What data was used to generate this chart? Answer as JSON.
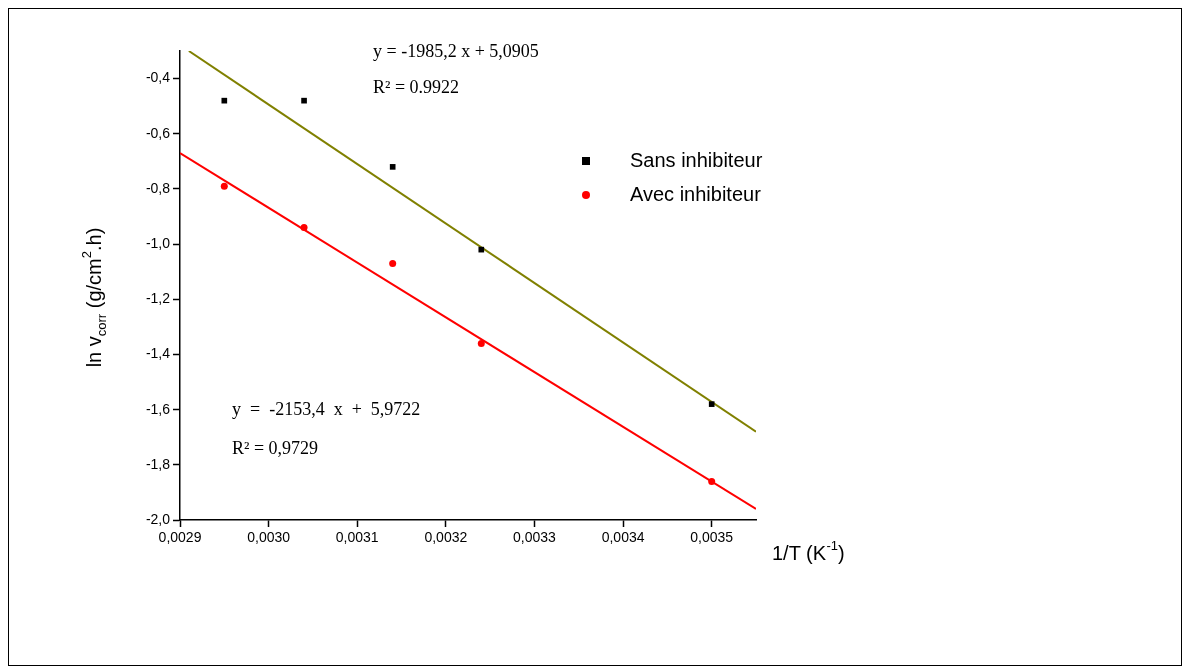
{
  "chart_data": {
    "type": "scatter",
    "xlabel": "1/T (K$^{-1}$)",
    "ylabel": "ln v$_{corr}$ (g/cm$^{2}$.h)",
    "xlim": [
      0.0029,
      0.00355
    ],
    "ylim": [
      -2.0,
      -0.3
    ],
    "xticks": [
      {
        "value": 0.0029,
        "label": "0,0029"
      },
      {
        "value": 0.003,
        "label": "0,0030"
      },
      {
        "value": 0.0031,
        "label": "0,0031"
      },
      {
        "value": 0.0032,
        "label": "0,0032"
      },
      {
        "value": 0.0033,
        "label": "0,0033"
      },
      {
        "value": 0.0034,
        "label": "0,0034"
      },
      {
        "value": 0.0035,
        "label": "0,0035"
      }
    ],
    "yticks": [
      {
        "value": -2.0,
        "label": "-2,0"
      },
      {
        "value": -1.8,
        "label": "-1,8"
      },
      {
        "value": -1.6,
        "label": "-1,6"
      },
      {
        "value": -1.4,
        "label": "-1,4"
      },
      {
        "value": -1.2,
        "label": "-1,2"
      },
      {
        "value": -1.0,
        "label": "-1,0"
      },
      {
        "value": -0.8,
        "label": "-0,8"
      },
      {
        "value": -0.6,
        "label": "-0,6"
      },
      {
        "value": -0.4,
        "label": "-0,4"
      }
    ],
    "grid": false,
    "legend": "top right",
    "series": [
      {
        "name": "Sans inhibiteur",
        "marker": "square",
        "color": "#000000",
        "x": [
          0.00295,
          0.00304,
          0.00314,
          0.00324,
          0.0035
        ],
        "values": [
          -0.48,
          -0.48,
          -0.72,
          -1.02,
          -1.58
        ]
      },
      {
        "name": "Avec inhibiteur",
        "marker": "circle",
        "color": "#ff0000",
        "x": [
          0.00295,
          0.00304,
          0.00314,
          0.00324,
          0.0035
        ],
        "values": [
          -0.79,
          -0.94,
          -1.07,
          -1.36,
          -1.86
        ]
      },
      {
        "type": "line",
        "marker": "none",
        "line_style": "solid",
        "color": "#808000",
        "x": [
          0.00291,
          0.00355
        ],
        "values": [
          -0.3,
          -1.68
        ]
      },
      {
        "type": "line",
        "marker": "none",
        "line_style": "solid",
        "color": "#ff0000",
        "x": [
          0.0029,
          0.00355
        ],
        "values": [
          -0.67,
          -1.96
        ]
      }
    ],
    "annotations": [
      "y = -1985,2 x + 5,0905",
      "R² = 0.9922",
      "y  =  -2153,4  x  +  5,9722",
      "R² = 0,9729"
    ]
  }
}
